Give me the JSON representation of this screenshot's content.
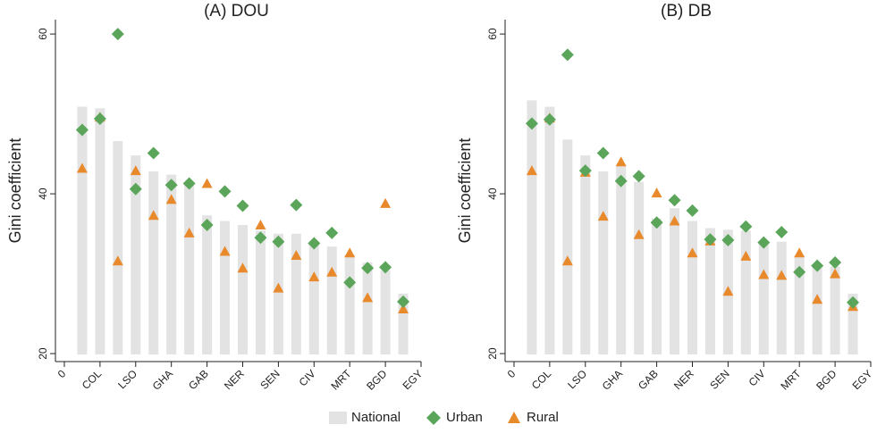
{
  "chart_data": [
    {
      "type": "bar",
      "title": "(A) DOU",
      "y_label": "Gini coefficient",
      "x": [
        1,
        2,
        3,
        4,
        5,
        6,
        7,
        8,
        9,
        10,
        11,
        12,
        13,
        14,
        15,
        16,
        17,
        18,
        19
      ],
      "xlim": [
        -0.5,
        20
      ],
      "ylim": [
        19,
        61.8
      ],
      "xticks": [
        0,
        {
          "value": 2,
          "label": "COL"
        },
        {
          "value": 4,
          "label": "LSO"
        },
        {
          "value": 6,
          "label": "GHA"
        },
        {
          "value": 8,
          "label": "GAB"
        },
        {
          "value": 10,
          "label": "NER"
        },
        {
          "value": 12,
          "label": "SEN"
        },
        {
          "value": 14,
          "label": "CIV"
        },
        {
          "value": 16,
          "label": "MRT"
        },
        {
          "value": 18,
          "label": "BGD"
        },
        {
          "value": 20,
          "label": "EGY"
        }
      ],
      "yticks": [
        20,
        40,
        60
      ],
      "series": [
        {
          "name": "National",
          "color": "#e3e3e3",
          "values": [
            50.9,
            50.7,
            46.6,
            44.8,
            42.8,
            42.4,
            41.5,
            37.3,
            36.6,
            36.1,
            35.4,
            35.0,
            35.0,
            33.9,
            33.4,
            32.4,
            31.4,
            30.4,
            27.5
          ]
        },
        {
          "name": "Urban",
          "color": "#5aa55a",
          "values": [
            48.0,
            49.4,
            60.0,
            40.6,
            45.1,
            41.1,
            41.3,
            36.1,
            40.3,
            38.5,
            34.5,
            34.0,
            38.6,
            33.8,
            35.1,
            28.9,
            30.7,
            30.8,
            26.5
          ]
        },
        {
          "name": "Rural",
          "color": "#e8892b",
          "values": [
            43.2,
            49.6,
            31.6,
            42.9,
            37.3,
            39.3,
            35.1,
            41.3,
            32.8,
            30.7,
            36.1,
            28.2,
            32.3,
            29.6,
            30.2,
            32.6,
            27.0,
            38.8,
            25.6
          ]
        }
      ]
    },
    {
      "type": "bar",
      "title": "(B) DB",
      "y_label": "Gini coefficient",
      "x": [
        1,
        2,
        3,
        4,
        5,
        6,
        7,
        8,
        9,
        10,
        11,
        12,
        13,
        14,
        15,
        16,
        17,
        18,
        19
      ],
      "xlim": [
        -0.5,
        20
      ],
      "ylim": [
        19,
        61.8
      ],
      "xticks": [
        0,
        {
          "value": 2,
          "label": "COL"
        },
        {
          "value": 4,
          "label": "LSO"
        },
        {
          "value": 6,
          "label": "GHA"
        },
        {
          "value": 8,
          "label": "GAB"
        },
        {
          "value": 10,
          "label": "NER"
        },
        {
          "value": 12,
          "label": "SEN"
        },
        {
          "value": 14,
          "label": "CIV"
        },
        {
          "value": 16,
          "label": "MRT"
        },
        {
          "value": 18,
          "label": "BGD"
        },
        {
          "value": 20,
          "label": "EGY"
        }
      ],
      "yticks": [
        20,
        40,
        60
      ],
      "series": [
        {
          "color": "#e3e3e3",
          "values": [
            51.7,
            50.9,
            46.8,
            44.8,
            42.8,
            43.6,
            41.5,
            36.9,
            38.2,
            36.6,
            35.7,
            35.5,
            35.4,
            34.0,
            34.0,
            32.3,
            31.1,
            30.9,
            27.5
          ]
        },
        {
          "color": "#5aa55a",
          "values": [
            48.8,
            49.3,
            57.4,
            42.9,
            45.1,
            41.6,
            42.2,
            36.4,
            39.2,
            37.9,
            34.3,
            34.2,
            35.9,
            33.9,
            35.2,
            30.2,
            31.0,
            31.4,
            26.4
          ]
        },
        {
          "color": "#e8892b",
          "values": [
            42.9,
            49.5,
            31.6,
            42.7,
            37.2,
            44.0,
            34.9,
            40.1,
            36.6,
            32.6,
            34.1,
            27.8,
            32.2,
            29.9,
            29.8,
            32.6,
            26.8,
            30.0,
            25.9
          ]
        }
      ]
    }
  ]
}
